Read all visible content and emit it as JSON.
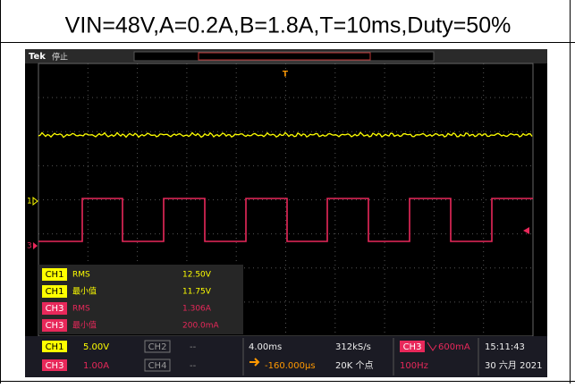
{
  "header": {
    "title": "VIN=48V,A=0.2A,B=1.8A,T=10ms,Duty=50%"
  },
  "scope": {
    "brand": "Tek",
    "status": "停止",
    "trigger_marker": "T",
    "channel_markers": [
      "1",
      "3"
    ],
    "measurements": [
      {
        "channel": "CH1",
        "name": "RMS",
        "value": "12.50V"
      },
      {
        "channel": "CH1",
        "name": "最小值",
        "value": "11.75V"
      },
      {
        "channel": "CH3",
        "name": "RMS",
        "value": "1.306A"
      },
      {
        "channel": "CH3",
        "name": "最小值",
        "value": "200.0mA"
      }
    ],
    "status_bar": {
      "ch1": {
        "label": "CH1",
        "scale": "5.00V"
      },
      "ch2": {
        "label": "CH2",
        "scale": "--"
      },
      "ch3": {
        "label": "CH3",
        "scale": "1.00A"
      },
      "ch4": {
        "label": "CH4",
        "scale": "--"
      },
      "timebase": "4.00ms",
      "sample_rate": "312kS/s",
      "delay": "-160.000µs",
      "record_length": "20K 个点",
      "trigger": {
        "channel": "CH3",
        "level": "600mA",
        "frequency": "100Hz"
      },
      "time": "15:11:43",
      "date": "30 六月 2021"
    }
  }
}
